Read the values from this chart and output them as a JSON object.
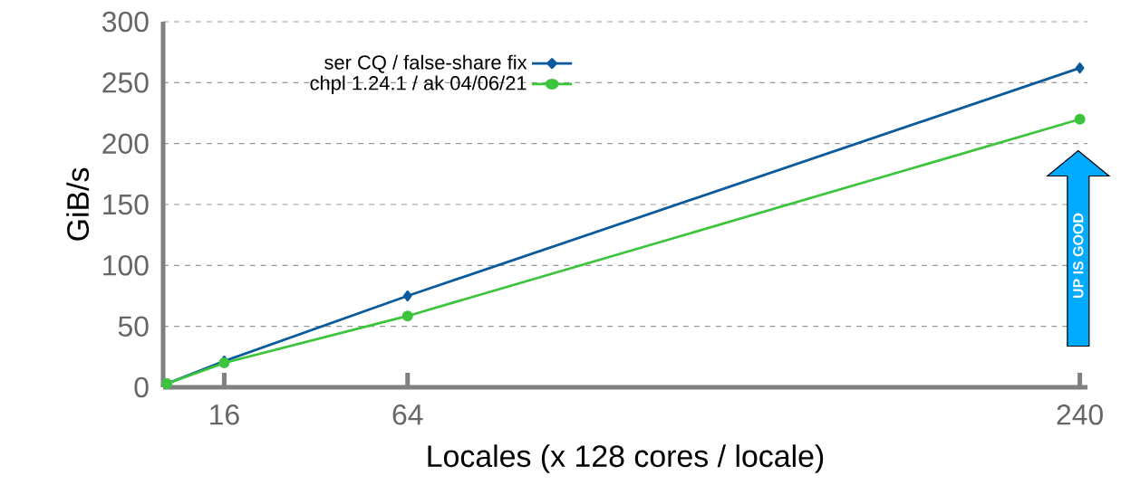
{
  "chart_data": {
    "type": "line",
    "xlabel": "Locales (x 128 cores / locale)",
    "ylabel": "GiB/s",
    "xlim": [
      0,
      242
    ],
    "xticks": [
      16,
      64,
      240
    ],
    "ylim": [
      0,
      300
    ],
    "yticks": [
      0,
      50,
      100,
      150,
      200,
      250,
      300
    ],
    "grid": "y",
    "legend": "top left",
    "series": [
      {
        "name": "ser CQ / false-share fix",
        "color": "#0b5a9c",
        "marker": "diamond",
        "x": [
          1,
          16,
          64,
          240
        ],
        "values": [
          3,
          21.5,
          75,
          262
        ]
      },
      {
        "name": "chpl 1.24.1 / ak 04/06/21",
        "color": "#3dc43d",
        "marker": "circle",
        "x": [
          1,
          16,
          64,
          240
        ],
        "values": [
          3,
          20,
          58.5,
          220
        ]
      }
    ],
    "annotations": [
      "UP IS GOOD"
    ]
  }
}
